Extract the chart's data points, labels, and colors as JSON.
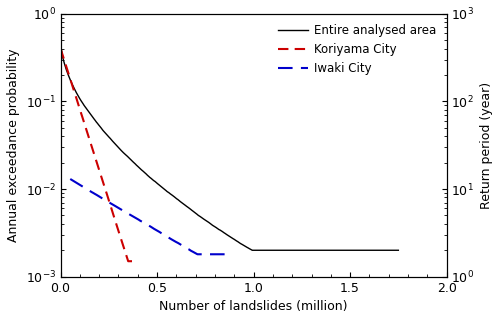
{
  "title": "",
  "xlabel": "Number of landslides (million)",
  "ylabel_left": "Annual exceedance probability",
  "ylabel_right": "Return period (year)",
  "xlim": [
    0,
    2.0
  ],
  "ylim": [
    0.001,
    1.0
  ],
  "xticks": [
    0.0,
    0.5,
    1.0,
    1.5,
    2.0
  ],
  "legend": {
    "entire_area": "Entire analysed area",
    "koriyama": "Koriyama City",
    "iwaki": "Iwaki City"
  },
  "colors": {
    "entire_area": "#000000",
    "koriyama": "#cc0000",
    "iwaki": "#0000cc"
  },
  "figsize": [
    5.0,
    3.2
  ],
  "dpi": 100
}
